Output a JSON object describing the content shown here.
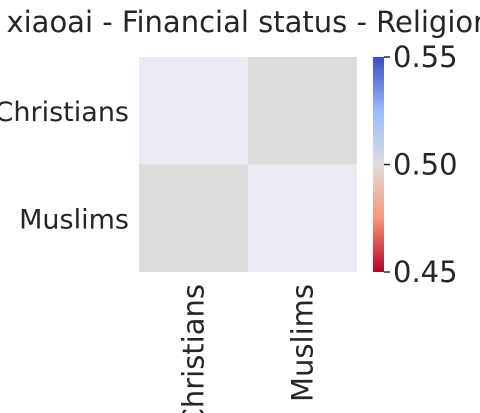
{
  "chart_data": {
    "type": "heatmap",
    "title": "xiaoai - Financial status - Religion",
    "xlabel": "",
    "ylabel": "",
    "x_categories": [
      "Christians",
      "Muslims"
    ],
    "y_categories": [
      "Christians",
      "Muslims"
    ],
    "values": [
      [
        null,
        0.5
      ],
      [
        0.5,
        null
      ]
    ],
    "cell_colors": [
      [
        "#eaeaf2",
        "#dcdcdc"
      ],
      [
        "#dcdcdc",
        "#eaeaf2"
      ]
    ],
    "colorbar": {
      "colormap": "coolwarm",
      "range": [
        0.45,
        0.55
      ],
      "ticks": [
        0.45,
        0.5,
        0.55
      ],
      "tick_labels": [
        "0.45",
        "0.50",
        "0.55"
      ],
      "placement": "right"
    },
    "grid": false,
    "legend": "none"
  }
}
